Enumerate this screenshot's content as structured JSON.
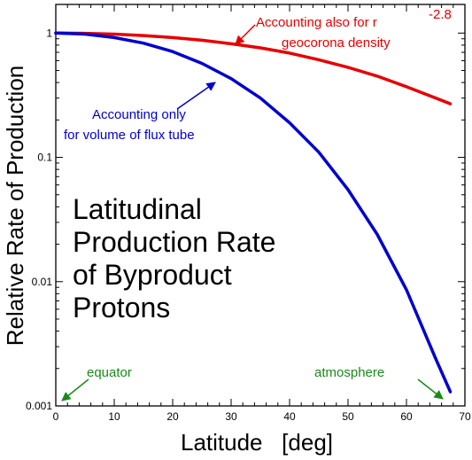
{
  "chart_data": {
    "type": "line",
    "xlabel": "Latitude   [deg]",
    "ylabel": "Relative Rate of Production",
    "xlim": [
      0,
      70
    ],
    "ylim": [
      0.001,
      1.7
    ],
    "yscale": "log",
    "grid": false,
    "xticks": [
      "0",
      "10",
      "20",
      "30",
      "40",
      "50",
      "60",
      "70"
    ],
    "yticks": [
      "0.001",
      "0.01",
      "0.1",
      "1"
    ],
    "title_lines": [
      "Latitudinal",
      "Production Rate",
      "of Byproduct",
      "Protons"
    ],
    "series": [
      {
        "color": "#e60000",
        "x": [
          0,
          5,
          10,
          15,
          20,
          25,
          30,
          35,
          40,
          45,
          50,
          55,
          60,
          65,
          67.5
        ],
        "y": [
          1.0,
          0.995,
          0.98,
          0.955,
          0.92,
          0.875,
          0.82,
          0.76,
          0.69,
          0.61,
          0.53,
          0.45,
          0.37,
          0.3,
          0.27
        ]
      },
      {
        "color": "#0000cc",
        "x": [
          0,
          5,
          10,
          15,
          20,
          25,
          30,
          35,
          40,
          45,
          50,
          55,
          60,
          65,
          67.5
        ],
        "y": [
          1.0,
          0.98,
          0.92,
          0.83,
          0.71,
          0.57,
          0.43,
          0.3,
          0.19,
          0.11,
          0.055,
          0.024,
          0.0086,
          0.0024,
          0.0013
        ]
      }
    ],
    "annotations": [
      {
        "lines": [
          "Accounting also for r",
          "geocorona density"
        ],
        "superscript": "-2.8",
        "color": "#e60000"
      },
      {
        "lines": [
          "Accounting only",
          "for volume of flux tube"
        ],
        "color": "#0000cc"
      },
      {
        "lines": [
          "equator"
        ],
        "color": "#1a8a1a"
      },
      {
        "lines": [
          "atmosphere"
        ],
        "color": "#1a8a1a"
      }
    ]
  }
}
